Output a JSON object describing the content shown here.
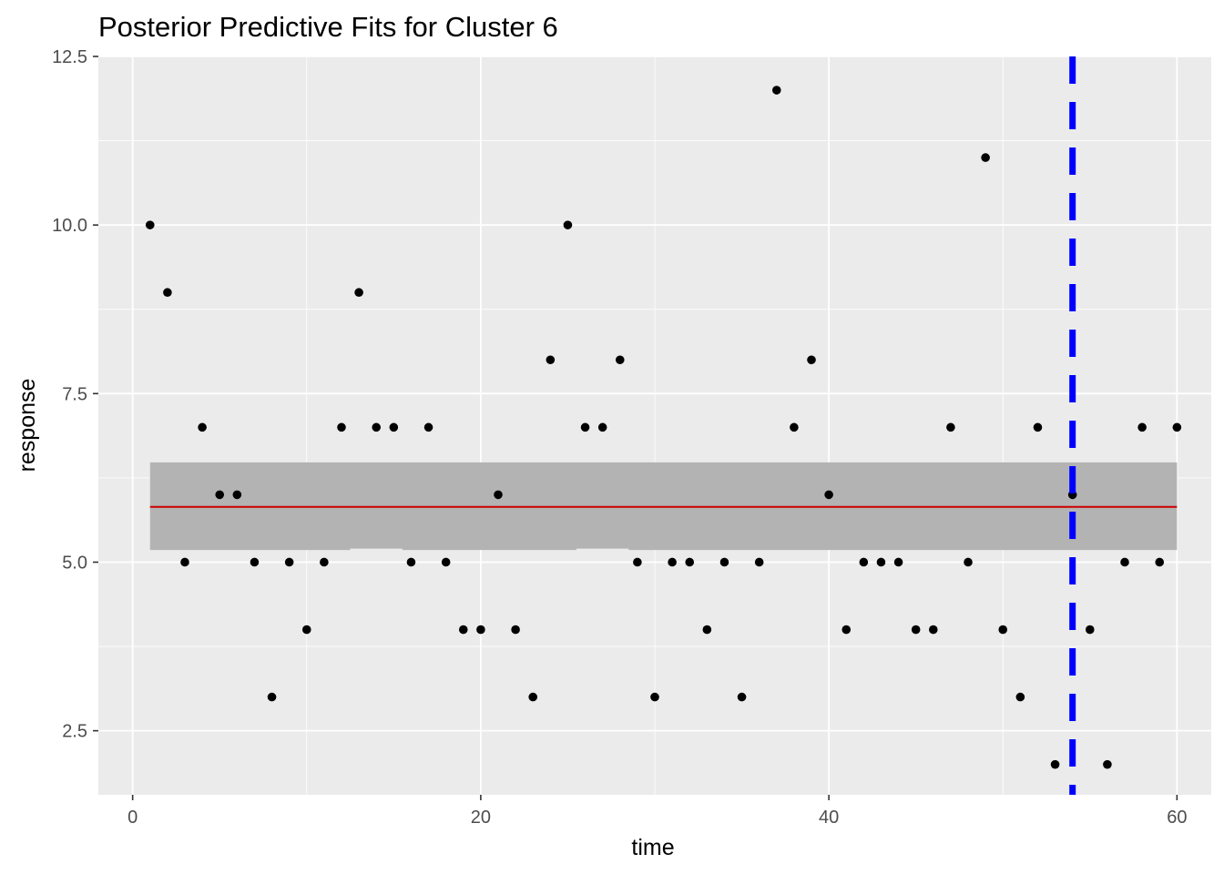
{
  "chart_data": {
    "type": "scatter",
    "title": "Posterior Predictive Fits for Cluster 6",
    "xlabel": "time",
    "ylabel": "response",
    "xlim": [
      -1.97,
      61.97
    ],
    "ylim": [
      1.55,
      12.5
    ],
    "x_ticks": [
      0,
      20,
      40,
      60
    ],
    "x_tick_labels": [
      "0",
      "20",
      "40",
      "60"
    ],
    "y_ticks": [
      2.5,
      5.0,
      7.5,
      10.0,
      12.5
    ],
    "y_tick_labels": [
      "2.5",
      "5.0",
      "7.5",
      "10.0",
      "12.5"
    ],
    "y_minor_ticks": [
      3.75,
      6.25,
      8.75,
      11.25
    ],
    "x_minor_ticks": [
      10,
      30,
      50
    ],
    "grid": true,
    "panel_background": "#ebebeb",
    "points": {
      "color": "#000000",
      "x": [
        1,
        2,
        3,
        4,
        5,
        6,
        7,
        8,
        9,
        10,
        11,
        12,
        13,
        14,
        15,
        16,
        17,
        18,
        19,
        20,
        21,
        22,
        23,
        24,
        25,
        26,
        27,
        28,
        29,
        30,
        31,
        32,
        33,
        34,
        35,
        36,
        37,
        38,
        39,
        40,
        41,
        42,
        43,
        44,
        45,
        46,
        47,
        48,
        49,
        50,
        51,
        52,
        53,
        54,
        55,
        56,
        57,
        58,
        59,
        60
      ],
      "y": [
        10,
        9,
        5,
        7,
        6,
        6,
        5,
        3,
        5,
        4,
        5,
        7,
        9,
        7,
        7,
        5,
        7,
        5,
        4,
        4,
        6,
        4,
        3,
        8,
        10,
        7,
        7,
        8,
        5,
        3,
        5,
        5,
        4,
        5,
        3,
        5,
        12,
        7,
        8,
        6,
        4,
        5,
        5,
        5,
        4,
        4,
        7,
        5,
        11,
        4,
        3,
        7,
        2,
        6,
        4,
        2,
        5,
        7,
        5,
        7
      ]
    },
    "fit_line": {
      "color": "#cc0000",
      "x": [
        1,
        60
      ],
      "y": [
        5.82,
        5.82
      ]
    },
    "credible_band": {
      "color": "#b3b3b3",
      "x": [
        1,
        12.5,
        12.5,
        15.5,
        15.5,
        25.5,
        25.5,
        28.5,
        28.5,
        60
      ],
      "lower": [
        5.18,
        5.18,
        5.2,
        5.2,
        5.18,
        5.18,
        5.2,
        5.2,
        5.18,
        5.18
      ],
      "upper": [
        6.48,
        6.48,
        6.48,
        6.48,
        6.48,
        6.48,
        6.48,
        6.48,
        6.48,
        6.48
      ]
    },
    "vline": {
      "x": 54,
      "color": "#0000ff",
      "style": "dashed"
    }
  }
}
